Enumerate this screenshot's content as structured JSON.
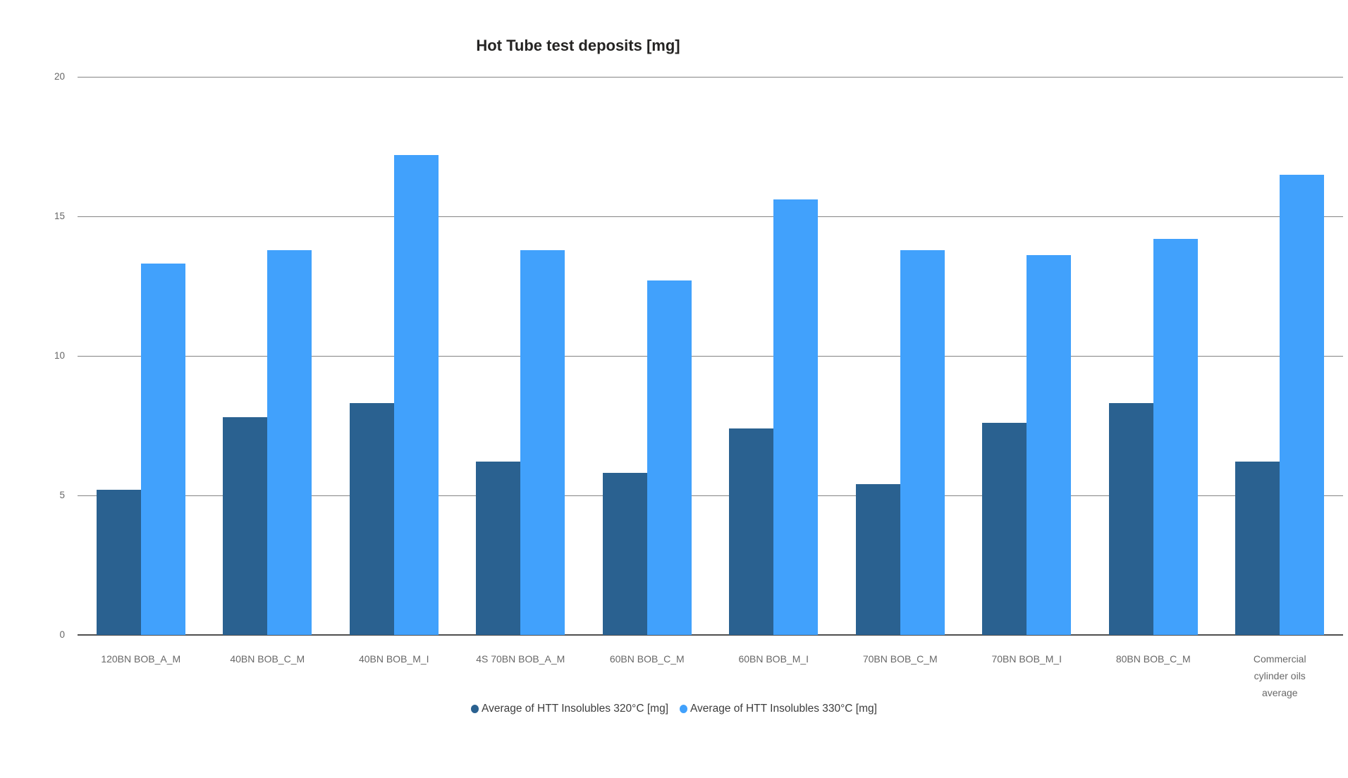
{
  "page": {
    "background": "#FFFFFF"
  },
  "chart_data": {
    "type": "bar",
    "title": "Hot Tube test deposits [mg]",
    "categories": [
      "120BN BOB_A_M",
      "40BN BOB_C_M",
      "40BN BOB_M_I",
      "4S 70BN BOB_A_M",
      "60BN BOB_C_M",
      "60BN BOB_M_I",
      "70BN BOB_C_M",
      "70BN BOB_M_I",
      "80BN BOB_C_M",
      "Commercial cylinder oils average"
    ],
    "series": [
      {
        "name": "Average of HTT Insolubles 320°C [mg]",
        "color": "#2A6190",
        "values": [
          5.2,
          7.8,
          8.3,
          6.2,
          5.8,
          7.4,
          5.4,
          7.6,
          8.3,
          6.2
        ]
      },
      {
        "name": "Average of HTT Insolubles 330°C [mg]",
        "color": "#41A1FC",
        "values": [
          13.3,
          13.8,
          17.2,
          13.8,
          12.7,
          15.6,
          13.8,
          13.6,
          14.2,
          16.5
        ]
      }
    ],
    "xlabel": "",
    "ylabel": "",
    "ylim": [
      0,
      20
    ],
    "yticks": [
      0,
      5,
      10,
      15,
      20
    ],
    "grid": "horizontal",
    "legend_position": "bottom-center",
    "colors": {
      "gridline": "#848484",
      "axis_line": "#4F4F4F",
      "tick_label": "#666666",
      "category_label": "#686868",
      "title_text": "#252423"
    }
  }
}
